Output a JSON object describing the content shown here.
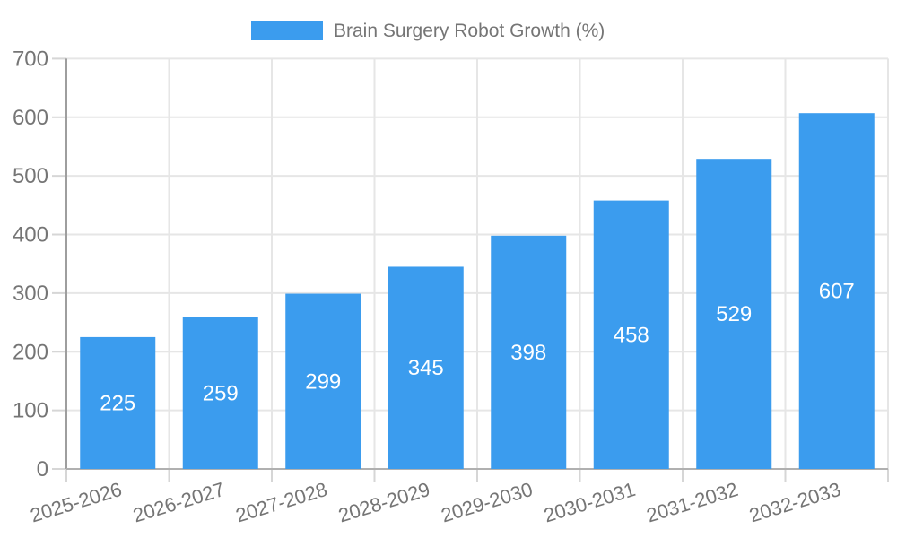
{
  "chart_data": {
    "type": "bar",
    "title": "Brain Surgery Robot Growth (%)",
    "legend_label": "Brain Surgery Robot Growth (%)",
    "legend_position": "top",
    "categories": [
      "2025-2026",
      "2026-2027",
      "2027-2028",
      "2028-2029",
      "2029-2030",
      "2030-2031",
      "2031-2032",
      "2032-2033"
    ],
    "values": [
      225,
      259,
      299,
      345,
      398,
      458,
      529,
      607
    ],
    "xlabel": "",
    "ylabel": "",
    "ylim": [
      0,
      700
    ],
    "yticks": [
      0,
      100,
      200,
      300,
      400,
      500,
      600,
      700
    ],
    "grid": true,
    "bar_value_labels": [
      "225",
      "259",
      "299",
      "345",
      "398",
      "458",
      "529",
      "607"
    ],
    "colors": {
      "bar": "#3B9CEE",
      "gridline": "#E6E6E6",
      "tick_mark": "#D6D6D6",
      "y_axis_line": "#9E9E9E",
      "x_axis_line": "#B0B0B0",
      "tick_label": "#757575",
      "legend_text": "#757575",
      "value_label": "#FFFFFF",
      "background": "#FFFFFF"
    }
  }
}
